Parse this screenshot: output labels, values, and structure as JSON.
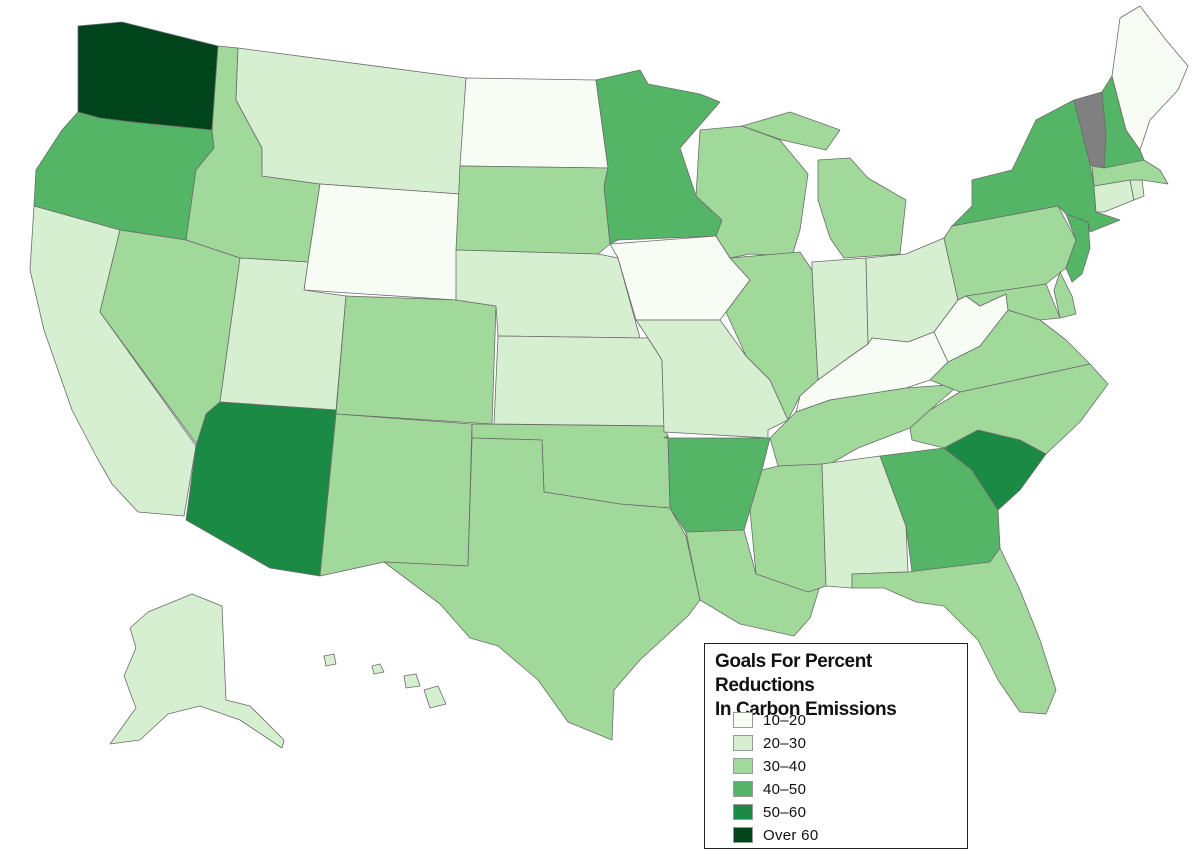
{
  "legend": {
    "title_line1": "Goals For Percent Reductions",
    "title_line2": "In Carbon Emissions",
    "items": [
      {
        "label": "10–20",
        "color": "#f7fcf5"
      },
      {
        "label": "20–30",
        "color": "#d6efd0"
      },
      {
        "label": "30–40",
        "color": "#a1d99b"
      },
      {
        "label": "40–50",
        "color": "#55b567"
      },
      {
        "label": "50–60",
        "color": "#1a8a45"
      },
      {
        "label": "Over 60",
        "color": "#00441b"
      }
    ]
  },
  "no_data_color": "#808080",
  "states": {
    "WA": "Over 60",
    "OR": "40–50",
    "CA": "20–30",
    "ID": "30–40",
    "NV": "30–40",
    "MT": "20–30",
    "WY": "10–20",
    "UT": "20–30",
    "AZ": "50–60",
    "CO": "30–40",
    "NM": "30–40",
    "ND": "10–20",
    "SD": "30–40",
    "NE": "20–30",
    "KS": "20–30",
    "OK": "30–40",
    "TX": "30–40",
    "MN": "40–50",
    "IA": "10–20",
    "MO": "20–30",
    "AR": "40–50",
    "LA": "30–40",
    "WI": "30–40",
    "IL": "30–40",
    "MI": "30–40",
    "IN": "20–30",
    "OH": "20–30",
    "KY": "10–20",
    "TN": "30–40",
    "MS": "30–40",
    "AL": "20–30",
    "GA": "40–50",
    "FL": "30–40",
    "SC": "50–60",
    "NC": "30–40",
    "VA": "30–40",
    "WV": "10–20",
    "PA": "30–40",
    "NY": "40–50",
    "NJ": "40–50",
    "MD": "30–40",
    "DE": "30–40",
    "CT": "20–30",
    "RI": "20–30",
    "MA": "30–40",
    "VT": "no data",
    "NH": "40–50",
    "ME": "10–20",
    "AK": "20–30",
    "HI": "20–30"
  }
}
